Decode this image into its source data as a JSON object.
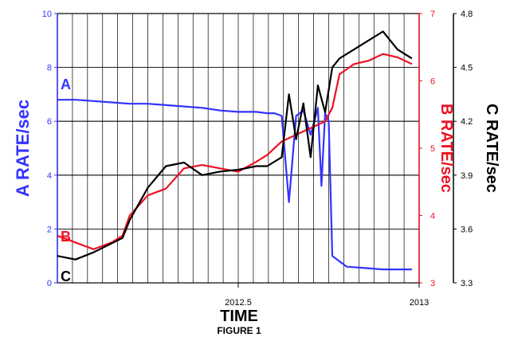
{
  "chart_data": {
    "type": "line",
    "title": "",
    "caption": "FIGURE 1",
    "xlabel": "TIME",
    "x_ticks": [
      "2012.5",
      "2013"
    ],
    "xlim": [
      2012.0,
      2013.0
    ],
    "axes": {
      "a": {
        "label": "A RATE/sec",
        "ylim": [
          0,
          10
        ],
        "ticks": [
          "0",
          "2",
          "4",
          "6",
          "8",
          "10"
        ],
        "color": "#3333ff"
      },
      "b": {
        "label": "B RATE/sec",
        "ylim": [
          3,
          7
        ],
        "ticks": [
          "3",
          "4",
          "5",
          "6",
          "7"
        ],
        "color": "#ee1122"
      },
      "c": {
        "label": "C RATE/sec",
        "ylim": [
          3.3,
          4.8
        ],
        "ticks": [
          "3.3",
          "3.6",
          "3.9",
          "4.2",
          "4.5",
          "4.8"
        ],
        "color": "#000000"
      }
    },
    "grid": true,
    "series": [
      {
        "name": "A",
        "axis": "a",
        "color": "#3333ff",
        "x": [
          2012.0,
          2012.05,
          2012.1,
          2012.15,
          2012.2,
          2012.25,
          2012.3,
          2012.35,
          2012.4,
          2012.45,
          2012.5,
          2012.55,
          2012.58,
          2012.6,
          2012.62,
          2012.64,
          2012.66,
          2012.68,
          2012.7,
          2012.72,
          2012.73,
          2012.74,
          2012.75,
          2012.76,
          2012.8,
          2012.85,
          2012.9,
          2012.95,
          2012.98
        ],
        "values": [
          6.8,
          6.8,
          6.75,
          6.7,
          6.65,
          6.65,
          6.6,
          6.55,
          6.5,
          6.4,
          6.35,
          6.35,
          6.3,
          6.3,
          6.2,
          3.0,
          6.2,
          6.4,
          5.5,
          6.5,
          3.6,
          6.3,
          6.0,
          1.0,
          0.6,
          0.55,
          0.5,
          0.5,
          0.5
        ]
      },
      {
        "name": "B",
        "axis": "b",
        "color": "#ee1122",
        "x": [
          2012.0,
          2012.05,
          2012.1,
          2012.15,
          2012.18,
          2012.2,
          2012.25,
          2012.3,
          2012.35,
          2012.4,
          2012.45,
          2012.5,
          2012.55,
          2012.58,
          2012.62,
          2012.66,
          2012.7,
          2012.74,
          2012.76,
          2012.78,
          2012.82,
          2012.86,
          2012.9,
          2012.94,
          2012.98
        ],
        "values": [
          3.7,
          3.6,
          3.5,
          3.6,
          3.7,
          4.0,
          4.3,
          4.4,
          4.7,
          4.75,
          4.7,
          4.65,
          4.8,
          4.9,
          5.1,
          5.2,
          5.3,
          5.4,
          5.6,
          6.1,
          6.25,
          6.3,
          6.4,
          6.35,
          6.25
        ]
      },
      {
        "name": "C",
        "axis": "c",
        "color": "#000000",
        "x": [
          2012.0,
          2012.05,
          2012.1,
          2012.15,
          2012.18,
          2012.2,
          2012.25,
          2012.3,
          2012.35,
          2012.4,
          2012.45,
          2012.5,
          2012.55,
          2012.58,
          2012.62,
          2012.64,
          2012.66,
          2012.68,
          2012.7,
          2012.72,
          2012.74,
          2012.76,
          2012.78,
          2012.82,
          2012.86,
          2012.9,
          2012.94,
          2012.98
        ],
        "values": [
          3.45,
          3.43,
          3.47,
          3.52,
          3.55,
          3.65,
          3.83,
          3.95,
          3.97,
          3.9,
          3.92,
          3.93,
          3.95,
          3.95,
          4.0,
          4.35,
          4.1,
          4.3,
          4.0,
          4.4,
          4.25,
          4.5,
          4.55,
          4.6,
          4.65,
          4.7,
          4.6,
          4.55
        ]
      }
    ],
    "series_tags": [
      "A",
      "B",
      "C"
    ]
  }
}
